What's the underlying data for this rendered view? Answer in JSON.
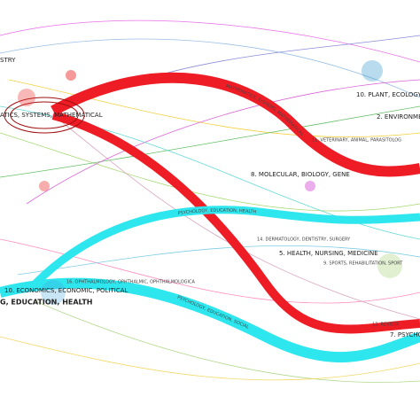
{
  "left_labels": [
    "STRY",
    "ATICS, SYSTEMS, MATHEMATICAL",
    "10. ECONOMICS, ECONOMIC, POLITICAL",
    "G, EDUCATION, HEALTH",
    "16. OPHTHALMOLOGY, OPHTHALMIC, OPHTHALMOLOGICA"
  ],
  "right_labels": [
    "10. PLANT, ECOLOGY,",
    "2. ENVIRONME",
    "11. VETERINARY, ANIMAL, PARASITOLOG",
    "8. MOLECULAR, BIOLOGY, GENE",
    "14. DERMATOLOGY, DENTISTRY, SURGERY",
    "5. HEALTH, NURSING, MEDICINE",
    "9. SPORTS, REHABILITATION, SPORT",
    "13. REVISTA",
    "7. PSYCHO"
  ],
  "path_labels": [
    "MATHEMATICS, SYSTEMS, MATHEMATICAL",
    "PSYCHOLOGY, EDUCATION, HEALTH",
    "PSYCHOLOGY, EDUCATION, SOCIAL"
  ]
}
